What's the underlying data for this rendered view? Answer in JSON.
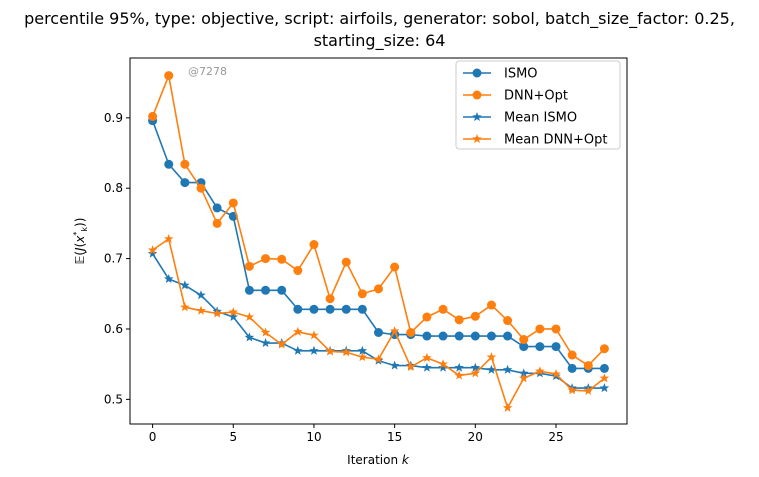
{
  "chart_data": {
    "type": "line",
    "title_line1": "percentile 95%, type: objective, script: airfoils, generator: sobol, batch_size_factor: 0.25,",
    "title_line2": "starting_size: 64",
    "xlabel": "Iteration k",
    "ylabel": "𝔼(J(x*k))",
    "xlim": [
      -1.4,
      29.4
    ],
    "ylim": [
      0.465,
      0.985
    ],
    "xticks": [
      0,
      5,
      10,
      15,
      20,
      25
    ],
    "yticks": [
      0.5,
      0.6,
      0.7,
      0.8,
      0.9
    ],
    "watermark": "@7278",
    "legend_position": "upper-right",
    "grid": false,
    "x": [
      0,
      1,
      2,
      3,
      4,
      5,
      6,
      7,
      8,
      9,
      10,
      11,
      12,
      13,
      14,
      15,
      16,
      17,
      18,
      19,
      20,
      21,
      22,
      23,
      24,
      25,
      26,
      27,
      28
    ],
    "series": [
      {
        "name": "ISMO",
        "color": "#1f77b4",
        "marker": "circle",
        "values": [
          0.896,
          0.834,
          0.808,
          0.808,
          0.772,
          0.76,
          0.655,
          0.655,
          0.655,
          0.628,
          0.628,
          0.628,
          0.628,
          0.628,
          0.595,
          0.592,
          0.592,
          0.59,
          0.59,
          0.59,
          0.59,
          0.59,
          0.59,
          0.575,
          0.575,
          0.575,
          0.544,
          0.544,
          0.544
        ]
      },
      {
        "name": "DNN+Opt",
        "color": "#ff7f0e",
        "marker": "circle",
        "values": [
          0.902,
          0.96,
          0.834,
          0.8,
          0.75,
          0.779,
          0.689,
          0.7,
          0.699,
          0.683,
          0.72,
          0.643,
          0.695,
          0.65,
          0.657,
          0.688,
          0.595,
          0.617,
          0.628,
          0.613,
          0.618,
          0.634,
          0.612,
          0.585,
          0.6,
          0.6,
          0.563,
          0.548,
          0.572
        ]
      },
      {
        "name": "Mean ISMO",
        "color": "#1f77b4",
        "marker": "star",
        "values": [
          0.707,
          0.671,
          0.662,
          0.648,
          0.625,
          0.617,
          0.588,
          0.58,
          0.58,
          0.569,
          0.569,
          0.569,
          0.569,
          0.569,
          0.555,
          0.548,
          0.548,
          0.545,
          0.545,
          0.545,
          0.545,
          0.542,
          0.542,
          0.537,
          0.537,
          0.533,
          0.516,
          0.516,
          0.516
        ]
      },
      {
        "name": "Mean DNN+Opt",
        "color": "#ff7f0e",
        "marker": "star",
        "values": [
          0.712,
          0.728,
          0.631,
          0.626,
          0.622,
          0.624,
          0.617,
          0.595,
          0.578,
          0.596,
          0.591,
          0.568,
          0.567,
          0.56,
          0.557,
          0.597,
          0.546,
          0.559,
          0.55,
          0.534,
          0.537,
          0.56,
          0.488,
          0.53,
          0.54,
          0.536,
          0.513,
          0.512,
          0.53
        ]
      }
    ]
  }
}
